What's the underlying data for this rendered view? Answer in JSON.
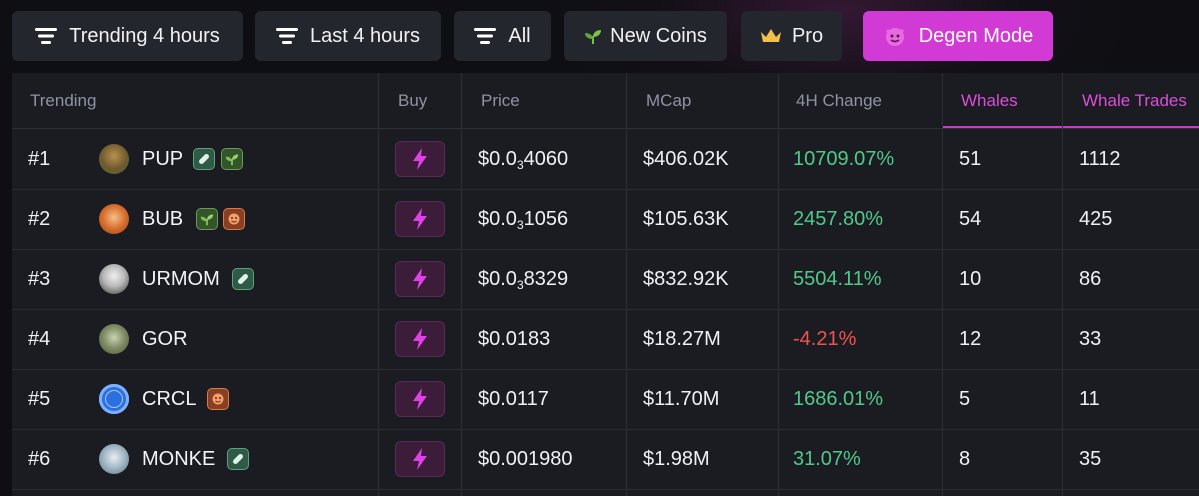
{
  "filters": [
    {
      "label": "Trending 4 hours",
      "icon": "filter-lines-icon"
    },
    {
      "label": "Last 4 hours",
      "icon": "filter-lines-icon"
    },
    {
      "label": "All",
      "icon": "filter-lines-icon"
    },
    {
      "label": "New Coins",
      "icon": "sprout-icon"
    },
    {
      "label": "Pro",
      "icon": "crown-icon"
    },
    {
      "label": "Degen Mode",
      "icon": "devil-face-icon",
      "active": true
    }
  ],
  "colors": {
    "accent": "#d23ad5",
    "positive": "#50c98a",
    "negative": "#ef5350",
    "background": "#0f0f13",
    "table_bg": "#1b1c22"
  },
  "table": {
    "headers": {
      "trending": "Trending",
      "buy": "Buy",
      "price": "Price",
      "mcap": "MCap",
      "change": "4H Change",
      "whales": "Whales",
      "whale_trades": "Whale Trades"
    },
    "rows": [
      {
        "rank": "#1",
        "name": "PUP",
        "avatar": "dog-avatar",
        "badges": [
          "pill",
          "sprout"
        ],
        "price_prefix": "$0.0",
        "price_zeros": "3",
        "price_rest": "4060",
        "mcap": "$406.02K",
        "change": "10709.07%",
        "change_dir": "up",
        "whales": "51",
        "whale_trades": "1112"
      },
      {
        "rank": "#2",
        "name": "BUB",
        "avatar": "shiba-avatar",
        "badges": [
          "sprout",
          "fire"
        ],
        "price_prefix": "$0.0",
        "price_zeros": "3",
        "price_rest": "1056",
        "mcap": "$105.63K",
        "change": "2457.80%",
        "change_dir": "up",
        "whales": "54",
        "whale_trades": "425"
      },
      {
        "rank": "#3",
        "name": "URMOM",
        "avatar": "person-avatar",
        "badges": [
          "pill"
        ],
        "price_prefix": "$0.0",
        "price_zeros": "3",
        "price_rest": "8329",
        "mcap": "$832.92K",
        "change": "5504.11%",
        "change_dir": "up",
        "whales": "10",
        "whale_trades": "86"
      },
      {
        "rank": "#4",
        "name": "GOR",
        "avatar": "gorilla-avatar",
        "badges": [],
        "price_prefix": "$0.0183",
        "price_zeros": "",
        "price_rest": "",
        "mcap": "$18.27M",
        "change": "-4.21%",
        "change_dir": "down",
        "whales": "12",
        "whale_trades": "33"
      },
      {
        "rank": "#5",
        "name": "CRCL",
        "avatar": "circle-avatar",
        "badges": [
          "fire"
        ],
        "price_prefix": "$0.0117",
        "price_zeros": "",
        "price_rest": "",
        "mcap": "$11.70M",
        "change": "1686.01%",
        "change_dir": "up",
        "whales": "5",
        "whale_trades": "11"
      },
      {
        "rank": "#6",
        "name": "MONKE",
        "avatar": "monkey-avatar",
        "badges": [
          "pill"
        ],
        "price_prefix": "$0.001980",
        "price_zeros": "",
        "price_rest": "",
        "mcap": "$1.98M",
        "change": "31.07%",
        "change_dir": "up",
        "whales": "8",
        "whale_trades": "35"
      }
    ]
  }
}
